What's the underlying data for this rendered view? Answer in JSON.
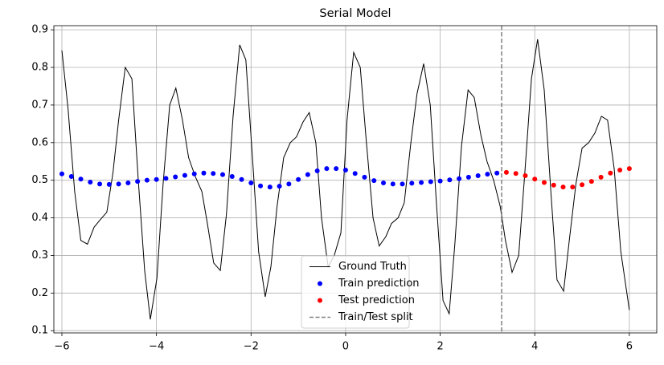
{
  "chart_data": {
    "type": "line",
    "title": "Serial Model",
    "xlim": [
      -6.17,
      6.58
    ],
    "ylim": [
      0.094,
      0.911
    ],
    "xticks": [
      {
        "value": -6,
        "label": "−6"
      },
      {
        "value": -4,
        "label": "−4"
      },
      {
        "value": -2,
        "label": "−2"
      },
      0,
      2,
      4,
      6
    ],
    "yticks": [
      0.1,
      0.2,
      0.3,
      0.4,
      0.5,
      0.6,
      0.7,
      0.8,
      0.9
    ],
    "grid": true,
    "legend": "lower center",
    "series": [
      {
        "name": "Ground Truth",
        "kind": "line",
        "color": "#000000",
        "x": [
          -6.0,
          -5.87,
          -5.73,
          -5.6,
          -5.46,
          -5.32,
          -5.19,
          -5.05,
          -4.92,
          -4.8,
          -4.66,
          -4.52,
          -4.39,
          -4.25,
          -4.13,
          -3.99,
          -3.86,
          -3.72,
          -3.59,
          -3.45,
          -3.32,
          -3.18,
          -3.04,
          -2.93,
          -2.79,
          -2.65,
          -2.52,
          -2.38,
          -2.24,
          -2.11,
          -1.97,
          -1.84,
          -1.7,
          -1.58,
          -1.45,
          -1.31,
          -1.17,
          -1.04,
          -0.9,
          -0.77,
          -0.63,
          -0.51,
          -0.37,
          -0.24,
          -0.1,
          0.03,
          0.17,
          0.31,
          0.44,
          0.58,
          0.71,
          0.85,
          0.97,
          1.11,
          1.24,
          1.38,
          1.51,
          1.65,
          1.79,
          1.92,
          2.06,
          2.19,
          2.31,
          2.45,
          2.59,
          2.72,
          2.86,
          2.99,
          3.13,
          3.27,
          3.38,
          3.52,
          3.66,
          3.79,
          3.93,
          4.06,
          4.2,
          4.34,
          4.47,
          4.61,
          4.73,
          4.87,
          5.0,
          5.14,
          5.27,
          5.41,
          5.54,
          5.68,
          5.82,
          6.0
        ],
        "values": [
          0.845,
          0.69,
          0.47,
          0.34,
          0.33,
          0.375,
          0.395,
          0.415,
          0.52,
          0.66,
          0.8,
          0.77,
          0.51,
          0.26,
          0.13,
          0.24,
          0.49,
          0.7,
          0.745,
          0.66,
          0.56,
          0.51,
          0.47,
          0.39,
          0.28,
          0.26,
          0.41,
          0.67,
          0.86,
          0.82,
          0.56,
          0.31,
          0.19,
          0.27,
          0.43,
          0.56,
          0.6,
          0.615,
          0.655,
          0.68,
          0.6,
          0.4,
          0.27,
          0.3,
          0.36,
          0.66,
          0.84,
          0.8,
          0.6,
          0.4,
          0.325,
          0.35,
          0.385,
          0.4,
          0.44,
          0.6,
          0.73,
          0.81,
          0.7,
          0.44,
          0.18,
          0.145,
          0.33,
          0.59,
          0.74,
          0.72,
          0.62,
          0.55,
          0.5,
          0.43,
          0.34,
          0.255,
          0.3,
          0.52,
          0.77,
          0.875,
          0.74,
          0.47,
          0.235,
          0.205,
          0.34,
          0.49,
          0.585,
          0.6,
          0.625,
          0.67,
          0.66,
          0.53,
          0.31,
          0.155
        ]
      },
      {
        "name": "Train prediction",
        "kind": "scatter",
        "color": "#0000ff",
        "x": [
          -6.0,
          -5.8,
          -5.6,
          -5.4,
          -5.2,
          -5.0,
          -4.8,
          -4.6,
          -4.4,
          -4.2,
          -4.0,
          -3.8,
          -3.6,
          -3.4,
          -3.2,
          -3.0,
          -2.8,
          -2.6,
          -2.4,
          -2.2,
          -2.0,
          -1.8,
          -1.6,
          -1.4,
          -1.2,
          -1.0,
          -0.8,
          -0.6,
          -0.4,
          -0.2,
          0,
          0.2,
          0.4,
          0.6,
          0.8,
          1.0,
          1.2,
          1.4,
          1.6,
          1.8,
          2.0,
          2.2,
          2.4,
          2.6,
          2.8,
          3.0,
          3.2
        ],
        "values": [
          0.517,
          0.51,
          0.503,
          0.495,
          0.49,
          0.489,
          0.49,
          0.493,
          0.497,
          0.5,
          0.502,
          0.505,
          0.509,
          0.513,
          0.517,
          0.519,
          0.518,
          0.515,
          0.51,
          0.502,
          0.493,
          0.485,
          0.482,
          0.484,
          0.49,
          0.502,
          0.515,
          0.525,
          0.531,
          0.531,
          0.527,
          0.518,
          0.508,
          0.499,
          0.493,
          0.49,
          0.49,
          0.492,
          0.494,
          0.496,
          0.498,
          0.501,
          0.504,
          0.508,
          0.512,
          0.516,
          0.519
        ]
      },
      {
        "name": "Test prediction",
        "kind": "scatter",
        "color": "#ff0000",
        "x": [
          3.4,
          3.6,
          3.8,
          4.0,
          4.2,
          4.4,
          4.6,
          4.8,
          5.0,
          5.2,
          5.4,
          5.6,
          5.8,
          6.0
        ],
        "values": [
          0.521,
          0.518,
          0.512,
          0.503,
          0.494,
          0.487,
          0.482,
          0.482,
          0.488,
          0.497,
          0.508,
          0.519,
          0.527,
          0.531
        ]
      }
    ],
    "split": {
      "name": "Train/Test split",
      "value": 3.3,
      "color": "#808080"
    }
  }
}
